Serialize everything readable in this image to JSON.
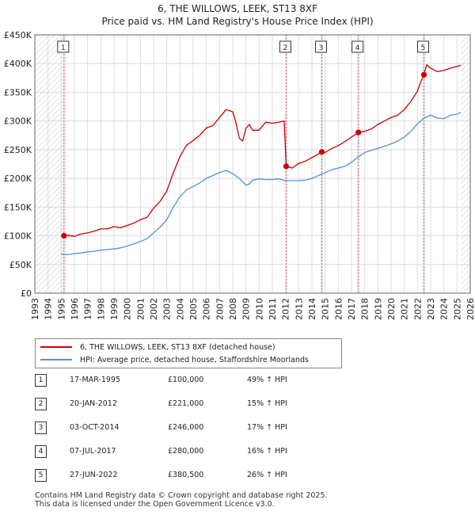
{
  "header": {
    "title_line1": "6, THE WILLOWS, LEEK, ST13 8XF",
    "title_line2": "Price paid vs. HM Land Registry's House Price Index (HPI)"
  },
  "chart_data": {
    "type": "line",
    "title": "6, THE WILLOWS, LEEK, ST13 8XF — Price paid vs. HM Land Registry's House Price Index (HPI)",
    "xlim": [
      1993,
      2026
    ],
    "ylim": [
      0,
      450000
    ],
    "y_ticks": [
      0,
      50000,
      100000,
      150000,
      200000,
      250000,
      300000,
      350000,
      400000,
      450000
    ],
    "y_tick_labels": [
      "£0",
      "£50K",
      "£100K",
      "£150K",
      "£200K",
      "£250K",
      "£300K",
      "£350K",
      "£400K",
      "£450K"
    ],
    "x_ticks": [
      1993,
      1994,
      1995,
      1996,
      1997,
      1998,
      1999,
      2000,
      2001,
      2002,
      2003,
      2004,
      2005,
      2006,
      2007,
      2008,
      2009,
      2010,
      2011,
      2012,
      2013,
      2014,
      2015,
      2016,
      2017,
      2018,
      2019,
      2020,
      2021,
      2022,
      2023,
      2024,
      2025,
      2026
    ],
    "x_tick_labels": [
      "1993",
      "1994",
      "1995",
      "1996",
      "1997",
      "1998",
      "1999",
      "2000",
      "2001",
      "2002",
      "2003",
      "2004",
      "2005",
      "2006",
      "2007",
      "2008",
      "2009",
      "2010",
      "2011",
      "2012",
      "2013",
      "2014",
      "2015",
      "2016",
      "2017",
      "2018",
      "2019",
      "2020",
      "2021",
      "2022",
      "2023",
      "2024",
      "2025",
      "2026"
    ],
    "hatch_ranges": [
      [
        1993,
        1995.21
      ],
      [
        2025.3,
        2026
      ]
    ],
    "colors": {
      "property": "#cc0000",
      "hpi": "#5b8fd0",
      "sale_line": "#e06060",
      "band": "#e8edf6"
    },
    "series": [
      {
        "name": "6, THE WILLOWS, LEEK, ST13 8XF (detached house)",
        "color": "#cc0000",
        "x": [
          1995.21,
          1995.5,
          1996,
          1996.5,
          1997,
          1997.5,
          1998,
          1998.5,
          1999,
          1999.5,
          2000,
          2000.5,
          2001,
          2001.5,
          2002,
          2002.5,
          2003,
          2003.5,
          2004,
          2004.5,
          2005,
          2005.5,
          2006,
          2006.5,
          2007,
          2007.5,
          2008,
          2008.25,
          2008.5,
          2008.75,
          2009,
          2009.25,
          2009.5,
          2010,
          2010.5,
          2011,
          2011.5,
          2011.9,
          2012.05,
          2012.5,
          2013,
          2013.5,
          2014,
          2014.75,
          2015,
          2015.5,
          2016,
          2016.5,
          2017,
          2017.52,
          2018,
          2018.5,
          2019,
          2019.5,
          2020,
          2020.5,
          2021,
          2021.5,
          2022,
          2022.25,
          2022.49,
          2022.7,
          2023,
          2023.5,
          2024,
          2024.5,
          2025,
          2025.3
        ],
        "values": [
          100000,
          101000,
          99000,
          103000,
          105000,
          108000,
          112000,
          112000,
          116000,
          114000,
          118000,
          122000,
          128000,
          132000,
          148000,
          160000,
          178000,
          210000,
          238000,
          258000,
          266000,
          275000,
          288000,
          292000,
          306000,
          320000,
          316000,
          296000,
          270000,
          265000,
          287000,
          294000,
          284000,
          284000,
          298000,
          296000,
          298000,
          300000,
          221000,
          218000,
          226000,
          230000,
          236000,
          246000,
          245000,
          252000,
          257000,
          264000,
          272000,
          280000,
          282000,
          286000,
          294000,
          300000,
          306000,
          310000,
          320000,
          334000,
          352000,
          368000,
          380500,
          398000,
          392000,
          386000,
          388000,
          392000,
          395000,
          397000
        ]
      },
      {
        "name": "HPI: Average price, detached house, Staffordshire Moorlands",
        "color": "#5b8fd0",
        "x": [
          1995.0,
          1995.5,
          1996,
          1996.5,
          1997,
          1997.5,
          1998,
          1998.5,
          1999,
          1999.5,
          2000,
          2000.5,
          2001,
          2001.5,
          2002,
          2002.5,
          2003,
          2003.5,
          2004,
          2004.5,
          2005,
          2005.5,
          2006,
          2006.5,
          2007,
          2007.5,
          2008,
          2008.5,
          2009,
          2009.25,
          2009.5,
          2010,
          2010.5,
          2011,
          2011.5,
          2012,
          2012.5,
          2013,
          2013.5,
          2014,
          2014.5,
          2015,
          2015.5,
          2016,
          2016.5,
          2017,
          2017.5,
          2018,
          2018.5,
          2019,
          2019.5,
          2020,
          2020.5,
          2021,
          2021.5,
          2022,
          2022.5,
          2023,
          2023.5,
          2024,
          2024.5,
          2025,
          2025.3
        ],
        "values": [
          68000,
          67000,
          69000,
          70000,
          72000,
          73000,
          75000,
          76000,
          77000,
          79000,
          82000,
          86000,
          90000,
          95000,
          105000,
          115000,
          128000,
          150000,
          168000,
          180000,
          186000,
          192000,
          200000,
          205000,
          210000,
          214000,
          208000,
          200000,
          188000,
          190000,
          197000,
          199000,
          198000,
          198000,
          199000,
          196000,
          196000,
          196000,
          197000,
          200000,
          205000,
          210000,
          215000,
          218000,
          221000,
          228000,
          237000,
          245000,
          249000,
          252000,
          256000,
          260000,
          265000,
          272000,
          282000,
          295000,
          305000,
          310000,
          305000,
          304000,
          310000,
          312000,
          315000
        ]
      }
    ],
    "sales": [
      {
        "num": "1",
        "x": 1995.21,
        "value": 100000
      },
      {
        "num": "2",
        "x": 2012.05,
        "value": 221000
      },
      {
        "num": "3",
        "x": 2014.75,
        "value": 246000
      },
      {
        "num": "4",
        "x": 2017.52,
        "value": 280000
      },
      {
        "num": "5",
        "x": 2022.49,
        "value": 380500
      }
    ]
  },
  "legend": {
    "property_label": "6, THE WILLOWS, LEEK, ST13 8XF (detached house)",
    "hpi_label": "HPI: Average price, detached house, Staffordshire Moorlands"
  },
  "sales_table": [
    {
      "num": "1",
      "date": "17-MAR-1995",
      "price": "£100,000",
      "hpi": "49% ↑ HPI"
    },
    {
      "num": "2",
      "date": "20-JAN-2012",
      "price": "£221,000",
      "hpi": "15% ↑ HPI"
    },
    {
      "num": "3",
      "date": "03-OCT-2014",
      "price": "£246,000",
      "hpi": "17% ↑ HPI"
    },
    {
      "num": "4",
      "date": "07-JUL-2017",
      "price": "£280,000",
      "hpi": "16% ↑ HPI"
    },
    {
      "num": "5",
      "date": "27-JUN-2022",
      "price": "£380,500",
      "hpi": "26% ↑ HPI"
    }
  ],
  "footer": {
    "line1": "Contains HM Land Registry data © Crown copyright and database right 2025.",
    "line2": "This data is licensed under the Open Government Licence v3.0."
  }
}
